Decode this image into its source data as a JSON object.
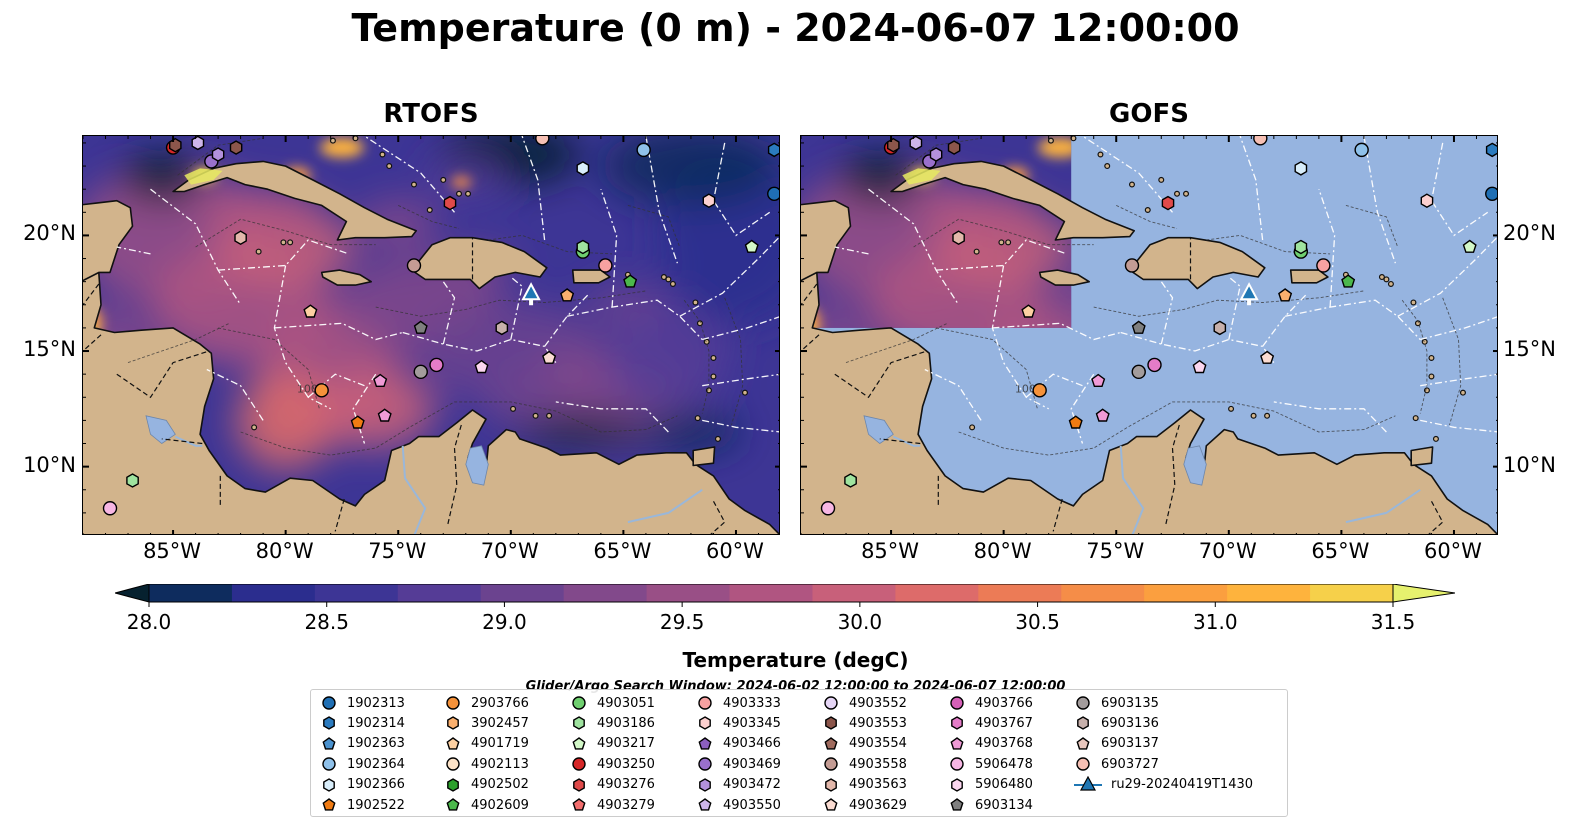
{
  "title": "Temperature (0 m) - 2024-06-07 12:00:00",
  "panels": [
    {
      "name": "RTOFS",
      "mode": "full"
    },
    {
      "name": "GOFS",
      "mode": "partial"
    }
  ],
  "map_extent": {
    "lon": [
      -89,
      -58
    ],
    "lat": [
      7,
      24.3
    ]
  },
  "x_ticks": [
    {
      "lon": -85,
      "label": "85°W"
    },
    {
      "lon": -80,
      "label": "80°W"
    },
    {
      "lon": -75,
      "label": "75°W"
    },
    {
      "lon": -70,
      "label": "70°W"
    },
    {
      "lon": -65,
      "label": "65°W"
    },
    {
      "lon": -60,
      "label": "60°W"
    }
  ],
  "y_ticks": [
    {
      "lat": 20,
      "label": "20°N"
    },
    {
      "lat": 15,
      "label": "15°N"
    },
    {
      "lat": 10,
      "label": "10°N"
    }
  ],
  "colors": {
    "land": "#d2b48c",
    "gofs_ocean": "#96b4e0",
    "lakes": "#96b4e0",
    "eez_lines": "#ffffff",
    "coast": "#111111",
    "colormap": [
      "#06212f",
      "#0e2c5e",
      "#2b2d8e",
      "#3d3595",
      "#553c96",
      "#6b438f",
      "#82498b",
      "#994f86",
      "#b05581",
      "#c8607a",
      "#dd6b6a",
      "#ec7b56",
      "#f58d48",
      "#fb9f3f",
      "#feb33d",
      "#f6d04a",
      "#e6f16e"
    ]
  },
  "colorbar": {
    "label": "Temperature (degC)",
    "min": 28.0,
    "max": 31.5,
    "ticks": [
      "28.0",
      "28.5",
      "29.0",
      "29.5",
      "30.0",
      "30.5",
      "31.0",
      "31.5"
    ]
  },
  "contour_label": "1000",
  "legend_title": "Glider/Argo Search Window: 2024-06-02 12:00:00 to 2024-06-07 12:00:00",
  "legend": [
    {
      "label": "1902313",
      "marker": "circle",
      "color": "#1f6fb4"
    },
    {
      "label": "1902314",
      "marker": "hexagon",
      "color": "#2b7bbf"
    },
    {
      "label": "1902363",
      "marker": "pentagon",
      "color": "#4a92cf"
    },
    {
      "label": "1902364",
      "marker": "circle",
      "color": "#8fc1ea"
    },
    {
      "label": "1902366",
      "marker": "hexagon",
      "color": "#d9eefb"
    },
    {
      "label": "1902522",
      "marker": "pentagon",
      "color": "#f07b12"
    },
    {
      "label": "2903766",
      "marker": "circle",
      "color": "#f5923a"
    },
    {
      "label": "3902457",
      "marker": "hexagon",
      "color": "#fbb06e"
    },
    {
      "label": "4901719",
      "marker": "pentagon",
      "color": "#fdd0a2"
    },
    {
      "label": "4902113",
      "marker": "circle",
      "color": "#fde3c8"
    },
    {
      "label": "4902502",
      "marker": "hexagon",
      "color": "#2ca02c"
    },
    {
      "label": "4902609",
      "marker": "pentagon",
      "color": "#4cb84c"
    },
    {
      "label": "4903051",
      "marker": "circle",
      "color": "#6fcf6f"
    },
    {
      "label": "4903186",
      "marker": "hexagon",
      "color": "#9fe39f"
    },
    {
      "label": "4903217",
      "marker": "pentagon",
      "color": "#d3f8c8"
    },
    {
      "label": "4903250",
      "marker": "circle",
      "color": "#d62728"
    },
    {
      "label": "4903276",
      "marker": "hexagon",
      "color": "#e04a4a"
    },
    {
      "label": "4903279",
      "marker": "pentagon",
      "color": "#f26d6d"
    },
    {
      "label": "4903333",
      "marker": "circle",
      "color": "#f7a1a1"
    },
    {
      "label": "4903345",
      "marker": "hexagon",
      "color": "#fcd0cf"
    },
    {
      "label": "4903466",
      "marker": "pentagon",
      "color": "#8b5fbf"
    },
    {
      "label": "4903469",
      "marker": "circle",
      "color": "#9a70cc"
    },
    {
      "label": "4903472",
      "marker": "hexagon",
      "color": "#b391dc"
    },
    {
      "label": "4903550",
      "marker": "pentagon",
      "color": "#cdb5ea"
    },
    {
      "label": "4903552",
      "marker": "circle",
      "color": "#e6d6f6"
    },
    {
      "label": "4903553",
      "marker": "hexagon",
      "color": "#8c564b"
    },
    {
      "label": "4903554",
      "marker": "pentagon",
      "color": "#a06b5e"
    },
    {
      "label": "4903558",
      "marker": "circle",
      "color": "#c49c94"
    },
    {
      "label": "4903563",
      "marker": "hexagon",
      "color": "#e3b8ab"
    },
    {
      "label": "4903629",
      "marker": "pentagon",
      "color": "#fbdcd2"
    },
    {
      "label": "4903766",
      "marker": "circle",
      "color": "#d660b8"
    },
    {
      "label": "4903767",
      "marker": "hexagon",
      "color": "#e47cc8"
    },
    {
      "label": "4903768",
      "marker": "pentagon",
      "color": "#ef9ad6"
    },
    {
      "label": "5906478",
      "marker": "circle",
      "color": "#f6b6e3"
    },
    {
      "label": "5906480",
      "marker": "hexagon",
      "color": "#fbd6ef"
    },
    {
      "label": "6903134",
      "marker": "pentagon",
      "color": "#7f7f7f"
    },
    {
      "label": "6903135",
      "marker": "circle",
      "color": "#a39c9c"
    },
    {
      "label": "6903136",
      "marker": "hexagon",
      "color": "#c7b0ab"
    },
    {
      "label": "6903137",
      "marker": "pentagon",
      "color": "#e8c6bd"
    },
    {
      "label": "6903727",
      "marker": "circle",
      "color": "#f6c0b4"
    },
    {
      "label": "ru29-20240419T1430",
      "marker": "triangle-line",
      "color": "#1f77b4"
    }
  ],
  "floats": [
    {
      "lon": -85.0,
      "lat": 23.8,
      "marker": "circle",
      "color": "#d62728"
    },
    {
      "lon": -84.9,
      "lat": 23.9,
      "marker": "hexagon",
      "color": "#8c564b"
    },
    {
      "lon": -83.9,
      "lat": 24.0,
      "marker": "hexagon",
      "color": "#cdb5ea"
    },
    {
      "lon": -83.3,
      "lat": 23.2,
      "marker": "circle",
      "color": "#9a70cc"
    },
    {
      "lon": -83.0,
      "lat": 23.5,
      "marker": "hexagon",
      "color": "#b391dc"
    },
    {
      "lon": -82.2,
      "lat": 23.8,
      "marker": "hexagon",
      "color": "#8c564b"
    },
    {
      "lon": -82.0,
      "lat": 19.9,
      "marker": "hexagon",
      "color": "#e3b8ab"
    },
    {
      "lon": -78.9,
      "lat": 16.7,
      "marker": "pentagon",
      "color": "#fdd0a2"
    },
    {
      "lon": -78.4,
      "lat": 13.3,
      "marker": "circle",
      "color": "#f5923a"
    },
    {
      "lon": -76.8,
      "lat": 11.9,
      "marker": "pentagon",
      "color": "#f07b12"
    },
    {
      "lon": -75.8,
      "lat": 13.7,
      "marker": "pentagon",
      "color": "#ef9ad6"
    },
    {
      "lon": -75.6,
      "lat": 12.2,
      "marker": "pentagon",
      "color": "#ef9ad6"
    },
    {
      "lon": -74.3,
      "lat": 18.7,
      "marker": "circle",
      "color": "#c49c94"
    },
    {
      "lon": -74.0,
      "lat": 14.1,
      "marker": "circle",
      "color": "#a39c9c"
    },
    {
      "lon": -74.0,
      "lat": 16.0,
      "marker": "pentagon",
      "color": "#7f7f7f"
    },
    {
      "lon": -73.3,
      "lat": 14.4,
      "marker": "circle",
      "color": "#e47cc8"
    },
    {
      "lon": -72.7,
      "lat": 21.4,
      "marker": "hexagon",
      "color": "#e04a4a"
    },
    {
      "lon": -71.3,
      "lat": 14.3,
      "marker": "pentagon",
      "color": "#fbd6ef"
    },
    {
      "lon": -70.4,
      "lat": 16.0,
      "marker": "hexagon",
      "color": "#c7b0ab"
    },
    {
      "lon": -68.6,
      "lat": 24.2,
      "marker": "circle",
      "color": "#f6c0b4"
    },
    {
      "lon": -68.3,
      "lat": 14.7,
      "marker": "pentagon",
      "color": "#fbdcd2"
    },
    {
      "lon": -67.5,
      "lat": 17.4,
      "marker": "pentagon",
      "color": "#fbb06e"
    },
    {
      "lon": -66.8,
      "lat": 19.3,
      "marker": "circle",
      "color": "#6fcf6f"
    },
    {
      "lon": -66.8,
      "lat": 19.5,
      "marker": "hexagon",
      "color": "#9fe39f"
    },
    {
      "lon": -66.8,
      "lat": 22.9,
      "marker": "hexagon",
      "color": "#d9eefb"
    },
    {
      "lon": -65.8,
      "lat": 18.7,
      "marker": "circle",
      "color": "#f7a1a1"
    },
    {
      "lon": -64.7,
      "lat": 18.0,
      "marker": "pentagon",
      "color": "#4cb84c"
    },
    {
      "lon": -64.1,
      "lat": 23.7,
      "marker": "circle",
      "color": "#8fc1ea"
    },
    {
      "lon": -61.2,
      "lat": 21.5,
      "marker": "hexagon",
      "color": "#fcd0cf"
    },
    {
      "lon": -59.3,
      "lat": 19.5,
      "marker": "pentagon",
      "color": "#d3f8c8"
    },
    {
      "lon": -58.3,
      "lat": 23.7,
      "marker": "hexagon",
      "color": "#2b7bbf"
    },
    {
      "lon": -58.3,
      "lat": 21.8,
      "marker": "circle",
      "color": "#1f6fb4"
    },
    {
      "lon": -87.8,
      "lat": 8.2,
      "marker": "circle",
      "color": "#f6b6e3"
    },
    {
      "lon": -86.8,
      "lat": 9.4,
      "marker": "hexagon",
      "color": "#9fe39f"
    }
  ],
  "glider": {
    "lon": -69.1,
    "lat": 17.5,
    "color": "#1f77b4"
  }
}
